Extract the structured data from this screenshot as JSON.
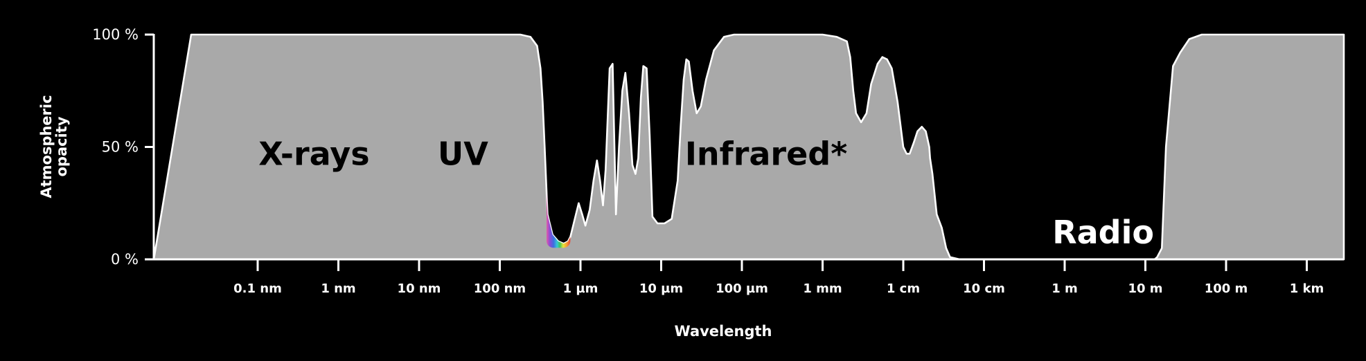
{
  "chart_data": {
    "type": "area",
    "xlabel": "Wavelength",
    "ylabel": "Atmospheric opacity",
    "x_scale": "log",
    "x_ticks": [
      "0.1 nm",
      "1 nm",
      "10 nm",
      "100 nm",
      "1 µm",
      "10 µm",
      "100 µm",
      "1 mm",
      "1 cm",
      "10 cm",
      "1 m",
      "10 m",
      "100 m",
      "1 km"
    ],
    "x_tick_values_m": [
      1e-10,
      1e-09,
      1e-08,
      1e-07,
      1e-06,
      1e-05,
      0.0001,
      0.001,
      0.01,
      0.1,
      1,
      10,
      100,
      1000
    ],
    "y_ticks": [
      "0 %",
      "50 %",
      "100 %"
    ],
    "y_tick_values": [
      0,
      50,
      100
    ],
    "ylim": [
      0,
      100
    ],
    "grid": false,
    "region_labels": [
      {
        "text": "X-rays",
        "wavelength_m": 5e-10,
        "opacity": 47
      },
      {
        "text": "UV",
        "wavelength_m": 3.5e-08,
        "opacity": 47
      },
      {
        "text": "Infrared*",
        "wavelength_m": 0.0002,
        "opacity": 47
      },
      {
        "text": "Radio",
        "wavelength_m": 3,
        "opacity": 12
      }
    ],
    "visible_band": {
      "from_m": 3.8e-07,
      "to_m": 7.5e-07
    },
    "series": [
      {
        "x_m": [
          1.5e-11,
          1e-10,
          1e-09,
          1e-08,
          1e-07,
          1.8e-07,
          2.4e-07,
          2.9e-07,
          3.2e-07,
          3.4e-07,
          3.6e-07,
          3.9e-07,
          4.5e-07,
          5.3e-07,
          6.2e-07,
          7e-07,
          7.5e-07,
          8.5e-07,
          9.5e-07,
          1.05e-06,
          1.15e-06,
          1.3e-06,
          1.45e-06,
          1.6e-06,
          1.75e-06,
          1.9e-06,
          2.05e-06,
          2.3e-06,
          2.5e-06,
          2.6e-06,
          2.75e-06,
          3e-06,
          3.3e-06,
          3.6e-06,
          4e-06,
          4.4e-06,
          4.8e-06,
          5.2e-06,
          5.6e-06,
          6e-06,
          6.6e-06,
          7.2e-06,
          7.8e-06,
          9e-06,
          1.1e-05,
          1.35e-05,
          1.6e-05,
          1.75e-05,
          1.9e-05,
          2.05e-05,
          2.2e-05,
          2.45e-05,
          2.75e-05,
          3.1e-05,
          3.6e-05,
          4.5e-05,
          6e-05,
          8e-05,
          0.0001,
          0.0003,
          0.001,
          0.0015,
          0.002,
          0.0022,
          0.0024,
          0.0026,
          0.003,
          0.0035,
          0.004,
          0.0048,
          0.0055,
          0.0063,
          0.0072,
          0.0085,
          0.01,
          0.011,
          0.012,
          0.0135,
          0.015,
          0.017,
          0.019,
          0.021,
          0.0215,
          0.023,
          0.026,
          0.03,
          0.034,
          0.038,
          0.05,
          0.1,
          1,
          10,
          13,
          14,
          16,
          18,
          22,
          27,
          35,
          50,
          100,
          1000,
          3000
        ],
        "y": [
          100,
          100,
          100,
          100,
          100,
          100,
          99,
          95,
          85,
          70,
          50,
          20,
          11,
          8,
          7,
          8,
          10,
          18,
          25,
          20,
          15,
          22,
          35,
          44,
          35,
          24,
          40,
          85,
          87,
          60,
          20,
          50,
          75,
          83,
          65,
          42,
          38,
          45,
          72,
          86,
          85,
          55,
          19,
          16,
          16,
          18,
          35,
          60,
          80,
          89,
          88,
          75,
          65,
          68,
          80,
          93,
          99,
          100,
          100,
          100,
          100,
          99,
          97,
          90,
          75,
          65,
          61,
          65,
          78,
          87,
          90,
          89,
          85,
          70,
          50,
          47,
          47,
          52,
          57,
          59,
          57,
          50,
          45,
          38,
          20,
          14,
          5,
          1,
          0,
          0,
          0,
          0,
          0,
          1,
          5,
          50,
          86,
          92,
          98,
          100,
          100,
          100,
          100
        ]
      }
    ]
  }
}
